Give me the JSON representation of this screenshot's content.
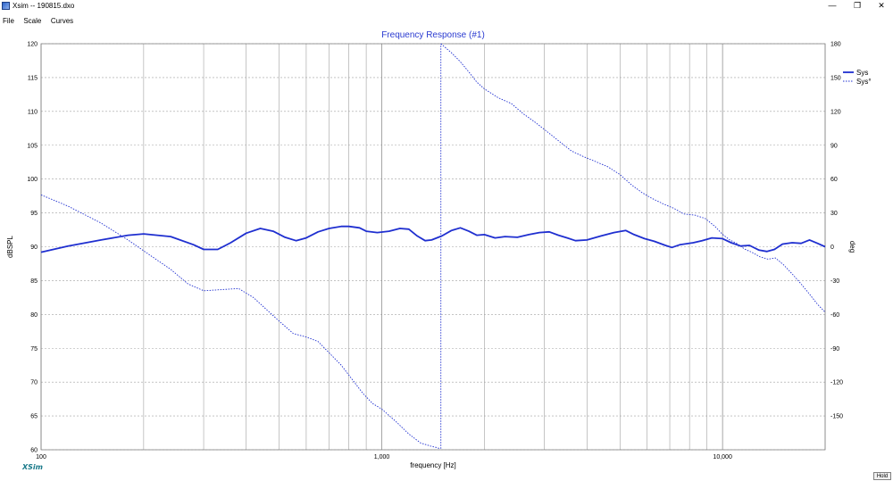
{
  "window": {
    "title": "Xsim -- 190815.dxo",
    "minimize": "—",
    "restore": "❐",
    "close": "✕"
  },
  "menu": [
    "File",
    "Scale",
    "Curves"
  ],
  "logo": "XSim",
  "hold_label": "Hold",
  "chart_data": {
    "type": "line",
    "title": "Frequency Response (#1)",
    "xlabel": "frequency [Hz]",
    "ylabel": "dBSPL",
    "y2label": "deg",
    "xscale": "log",
    "xlim": [
      100,
      20000
    ],
    "ylim": [
      60,
      120
    ],
    "y2lim": [
      -180,
      180
    ],
    "x_ticks": [
      {
        "v": 100,
        "label": "100"
      },
      {
        "v": 1000,
        "label": "1,000"
      },
      {
        "v": 10000,
        "label": "10,000"
      }
    ],
    "y_ticks": [
      60,
      65,
      70,
      75,
      80,
      85,
      90,
      95,
      100,
      105,
      110,
      115,
      120
    ],
    "y2_ticks": [
      -150,
      -120,
      -90,
      -60,
      -30,
      0,
      30,
      60,
      90,
      120,
      150,
      180
    ],
    "grid": true,
    "legend_position": "top-right",
    "colors": {
      "series": "#1f2fd0",
      "grid": "#a0a0a0",
      "title": "#2a3ad0"
    },
    "series": [
      {
        "name": "Sys",
        "axis": "left",
        "style": "solid",
        "points": [
          [
            100,
            89.2
          ],
          [
            120,
            90.1
          ],
          [
            150,
            91.0
          ],
          [
            180,
            91.7
          ],
          [
            200,
            91.9
          ],
          [
            240,
            91.5
          ],
          [
            280,
            90.3
          ],
          [
            300,
            89.6
          ],
          [
            330,
            89.6
          ],
          [
            360,
            90.6
          ],
          [
            400,
            92.0
          ],
          [
            440,
            92.7
          ],
          [
            480,
            92.3
          ],
          [
            520,
            91.4
          ],
          [
            560,
            90.9
          ],
          [
            600,
            91.3
          ],
          [
            650,
            92.2
          ],
          [
            700,
            92.7
          ],
          [
            760,
            93.0
          ],
          [
            800,
            93.0
          ],
          [
            860,
            92.8
          ],
          [
            900,
            92.3
          ],
          [
            970,
            92.1
          ],
          [
            1050,
            92.3
          ],
          [
            1130,
            92.7
          ],
          [
            1200,
            92.6
          ],
          [
            1270,
            91.6
          ],
          [
            1340,
            90.9
          ],
          [
            1400,
            91.0
          ],
          [
            1500,
            91.6
          ],
          [
            1600,
            92.4
          ],
          [
            1700,
            92.8
          ],
          [
            1800,
            92.3
          ],
          [
            1900,
            91.7
          ],
          [
            2000,
            91.8
          ],
          [
            2150,
            91.3
          ],
          [
            2300,
            91.5
          ],
          [
            2500,
            91.4
          ],
          [
            2700,
            91.8
          ],
          [
            2900,
            92.1
          ],
          [
            3100,
            92.2
          ],
          [
            3300,
            91.7
          ],
          [
            3500,
            91.3
          ],
          [
            3700,
            90.9
          ],
          [
            4000,
            91.0
          ],
          [
            4400,
            91.6
          ],
          [
            4800,
            92.1
          ],
          [
            5200,
            92.4
          ],
          [
            5500,
            91.8
          ],
          [
            5900,
            91.2
          ],
          [
            6300,
            90.8
          ],
          [
            6800,
            90.2
          ],
          [
            7100,
            89.9
          ],
          [
            7500,
            90.3
          ],
          [
            8200,
            90.6
          ],
          [
            8700,
            90.9
          ],
          [
            9300,
            91.3
          ],
          [
            10000,
            91.2
          ],
          [
            10600,
            90.6
          ],
          [
            11300,
            90.1
          ],
          [
            12000,
            90.2
          ],
          [
            12800,
            89.5
          ],
          [
            13500,
            89.3
          ],
          [
            14200,
            89.6
          ],
          [
            15000,
            90.4
          ],
          [
            16000,
            90.6
          ],
          [
            17000,
            90.5
          ],
          [
            18000,
            91.0
          ],
          [
            19000,
            90.5
          ],
          [
            20000,
            90.0
          ]
        ]
      },
      {
        "name": "Sys°",
        "axis": "right",
        "style": "dotted",
        "points": [
          [
            100,
            46
          ],
          [
            120,
            36
          ],
          [
            150,
            21
          ],
          [
            180,
            6
          ],
          [
            210,
            -8
          ],
          [
            240,
            -20
          ],
          [
            270,
            -33
          ],
          [
            300,
            -39
          ],
          [
            340,
            -38
          ],
          [
            380,
            -37
          ],
          [
            420,
            -45
          ],
          [
            460,
            -56
          ],
          [
            500,
            -66
          ],
          [
            550,
            -77
          ],
          [
            600,
            -80
          ],
          [
            650,
            -84
          ],
          [
            700,
            -94
          ],
          [
            760,
            -105
          ],
          [
            820,
            -118
          ],
          [
            880,
            -130
          ],
          [
            940,
            -139
          ],
          [
            1000,
            -144
          ],
          [
            1100,
            -155
          ],
          [
            1200,
            -166
          ],
          [
            1300,
            -174
          ],
          [
            1400,
            -177
          ],
          [
            1450,
            -178
          ],
          [
            1480,
            -179
          ],
          [
            1490,
            180
          ],
          [
            1600,
            172
          ],
          [
            1700,
            164
          ],
          [
            1800,
            155
          ],
          [
            1900,
            146
          ],
          [
            2000,
            140
          ],
          [
            2200,
            132
          ],
          [
            2400,
            127
          ],
          [
            2600,
            118
          ],
          [
            2800,
            111
          ],
          [
            3000,
            104
          ],
          [
            3300,
            94
          ],
          [
            3600,
            85
          ],
          [
            3900,
            80
          ],
          [
            4200,
            76
          ],
          [
            4600,
            71
          ],
          [
            5000,
            64
          ],
          [
            5400,
            55
          ],
          [
            5800,
            48
          ],
          [
            6200,
            43
          ],
          [
            6700,
            38
          ],
          [
            7200,
            34
          ],
          [
            7700,
            29
          ],
          [
            8300,
            28
          ],
          [
            8900,
            25
          ],
          [
            9500,
            18
          ],
          [
            10000,
            11
          ],
          [
            10500,
            6
          ],
          [
            11000,
            3
          ],
          [
            11600,
            -2
          ],
          [
            12200,
            -5
          ],
          [
            12900,
            -9
          ],
          [
            13600,
            -11
          ],
          [
            14300,
            -10
          ],
          [
            15100,
            -16
          ],
          [
            16000,
            -24
          ],
          [
            17000,
            -33
          ],
          [
            18000,
            -42
          ],
          [
            19000,
            -51
          ],
          [
            20000,
            -58
          ]
        ]
      }
    ]
  }
}
